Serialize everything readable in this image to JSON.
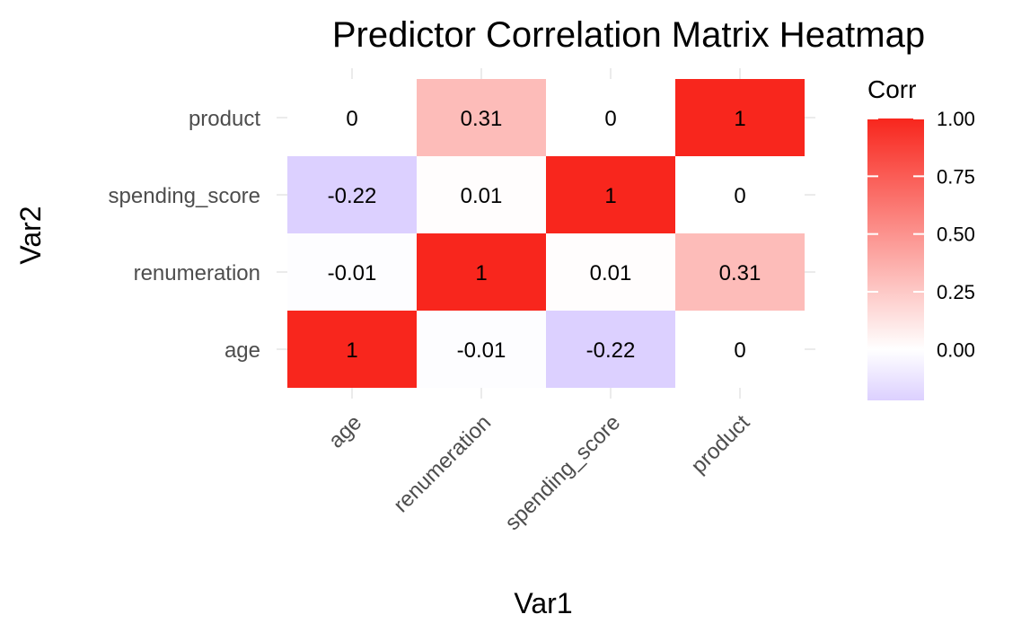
{
  "chart_data": {
    "type": "heatmap",
    "title": "Predictor Correlation Matrix Heatmap",
    "xlabel": "Var1",
    "ylabel": "Var2",
    "x_categories": [
      "age",
      "renumeration",
      "spending_score",
      "product"
    ],
    "y_categories": [
      "age",
      "renumeration",
      "spending_score",
      "product"
    ],
    "values": [
      [
        1,
        -0.01,
        -0.22,
        0
      ],
      [
        -0.01,
        1,
        0.01,
        0.31
      ],
      [
        -0.22,
        0.01,
        1,
        0
      ],
      [
        0,
        0.31,
        0,
        1
      ]
    ],
    "labels": [
      [
        "1",
        "-0.01",
        "-0.22",
        "0"
      ],
      [
        "-0.01",
        "1",
        "0.01",
        "0.31"
      ],
      [
        "-0.22",
        "0.01",
        "1",
        "0"
      ],
      [
        "0",
        "0.31",
        "0",
        "1"
      ]
    ],
    "legend": {
      "title": "Corr",
      "ticks": [
        "1.00",
        "0.75",
        "0.50",
        "0.25",
        "0.00"
      ],
      "tick_values": [
        1.0,
        0.75,
        0.5,
        0.25,
        0.0
      ],
      "range": [
        -0.22,
        1.0
      ],
      "placement": "right"
    },
    "colors": {
      "low": "#dcd0ff",
      "mid": "#ffffff",
      "high": "#f8261d"
    }
  }
}
